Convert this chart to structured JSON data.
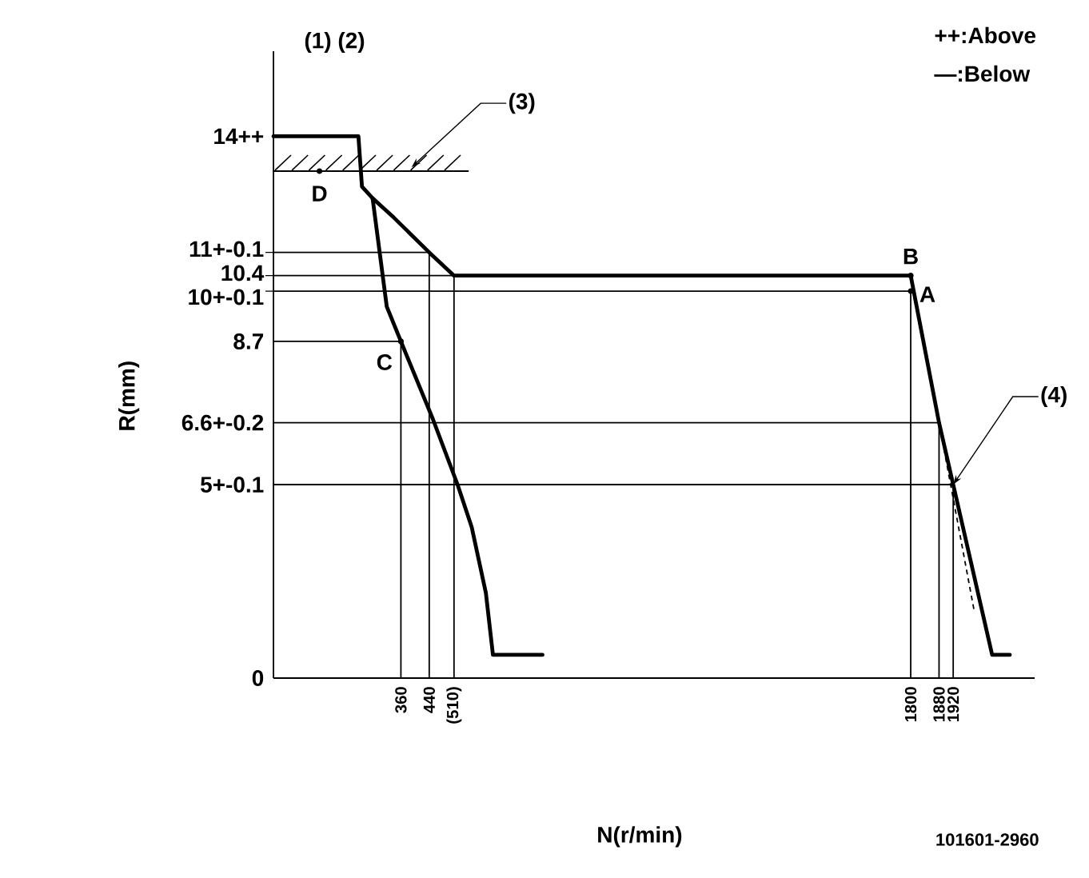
{
  "chart_data": {
    "type": "line",
    "xlabel": "N(r/min)",
    "ylabel": "R(mm)",
    "xlim": [
      0,
      2150
    ],
    "ylim": [
      0,
      16.2
    ],
    "xticks": [
      360,
      440,
      {
        "value": 510,
        "label": "(510)"
      },
      1800,
      1880,
      1920
    ],
    "yticks": [
      0,
      {
        "value": 5,
        "label": "5+-0.1"
      },
      {
        "value": 6.6,
        "label": "6.6+-0.2"
      },
      8.7,
      {
        "value": 10,
        "label": "10+-0.1"
      },
      10.4,
      {
        "value": 11,
        "label": "11+-0.1"
      },
      {
        "value": 14,
        "label": "14++"
      }
    ],
    "series": [
      {
        "color": "#000000",
        "x": [
          0,
          240,
          250,
          280,
          320,
          360,
          450,
          520,
          560,
          600,
          620,
          760
        ],
        "values": [
          14,
          14,
          12.7,
          12.4,
          9.6,
          8.7,
          6.7,
          5,
          3.9,
          2.2,
          0.6,
          0.6
        ]
      },
      {
        "color": "#000000",
        "x": [
          280,
          340,
          440,
          510,
          1800,
          1880,
          1920,
          2030,
          2080
        ],
        "values": [
          12.4,
          11.9,
          11,
          10.4,
          10.4,
          6.6,
          5,
          0.6,
          0.6
        ]
      },
      {
        "color": "#000000",
        "line_style": "dashed",
        "x": [
          1880,
          1980
        ],
        "values": [
          6.6,
          1.7
        ]
      },
      {
        "color": "#000000",
        "x": [
          0,
          440,
          440
        ],
        "values": [
          11,
          11,
          0
        ]
      },
      {
        "color": "#000000",
        "x": [
          0,
          510,
          510
        ],
        "values": [
          10.4,
          10.4,
          0
        ]
      },
      {
        "color": "#000000",
        "x": [
          0,
          1800,
          1800
        ],
        "values": [
          10,
          10,
          0
        ]
      },
      {
        "color": "#000000",
        "x": [
          0,
          360,
          360
        ],
        "values": [
          8.7,
          8.7,
          0
        ]
      },
      {
        "color": "#000000",
        "x": [
          0,
          1880,
          1880
        ],
        "values": [
          6.6,
          6.6,
          0
        ]
      },
      {
        "color": "#000000",
        "x": [
          0,
          1920,
          1920
        ],
        "values": [
          5,
          5,
          0
        ]
      },
      {
        "color": "#000000",
        "x": [
          0,
          550
        ],
        "values": [
          13.1,
          13.1
        ]
      }
    ],
    "annotations": [
      "(1) (2)",
      "++:Above",
      "—:Below",
      {
        "text": "(3)",
        "x": 390,
        "y": 13.2
      },
      {
        "text": "(4)",
        "x": 1920,
        "y": 5
      },
      {
        "text": "A",
        "x": 1800,
        "y": 10
      },
      {
        "text": "B",
        "x": 1800,
        "y": 10.4
      },
      {
        "text": "C",
        "x": 360,
        "y": 8.7
      },
      {
        "text": "D",
        "x": 130,
        "y": 13.1
      },
      "101601-2960"
    ]
  }
}
